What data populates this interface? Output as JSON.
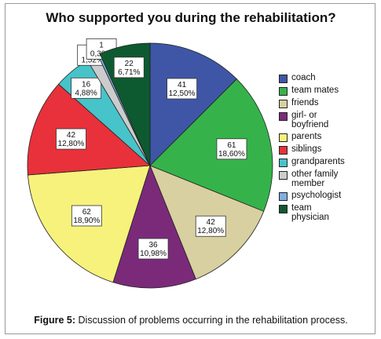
{
  "chart_data": {
    "type": "pie",
    "title": "Who supported you during the rehabilitation?",
    "slices": [
      {
        "name": "coach",
        "count": "41",
        "percent": "12,50%",
        "value": 41,
        "color": "#3f56a6"
      },
      {
        "name": "team mates",
        "count": "61",
        "percent": "18,60%",
        "value": 61,
        "color": "#35b34a"
      },
      {
        "name": "friends",
        "count": "42",
        "percent": "12,80%",
        "value": 42,
        "color": "#d8d0a0"
      },
      {
        "name": "girl- or boyfriend",
        "count": "36",
        "percent": "10,98%",
        "value": 36,
        "color": "#7b2a7a"
      },
      {
        "name": "parents",
        "count": "62",
        "percent": "18,90%",
        "value": 62,
        "color": "#f7f27c"
      },
      {
        "name": "siblings",
        "count": "42",
        "percent": "12,80%",
        "value": 42,
        "color": "#e8313a"
      },
      {
        "name": "grandparents",
        "count": "16",
        "percent": "4,88%",
        "value": 16,
        "color": "#46c4c9"
      },
      {
        "name": "other family member",
        "count": "5",
        "percent": "1,52%",
        "value": 5,
        "color": "#cccccc"
      },
      {
        "name": "psychologist",
        "count": "1",
        "percent": "0,30%",
        "value": 1,
        "color": "#7faee0"
      },
      {
        "name": "team physician",
        "count": "22",
        "percent": "6,71%",
        "value": 22,
        "color": "#0e5a30"
      }
    ],
    "legend_position": "right"
  },
  "legend_labels": [
    "coach",
    "team mates",
    "friends",
    "girl- or\nboyfriend",
    "parents",
    "siblings",
    "grandparents",
    "other family\nmember",
    "psychologist",
    "team\nphysician"
  ],
  "caption": {
    "prefix": "Figure 5:",
    "text": " Discussion of problems occurring in the rehabilitation process."
  }
}
